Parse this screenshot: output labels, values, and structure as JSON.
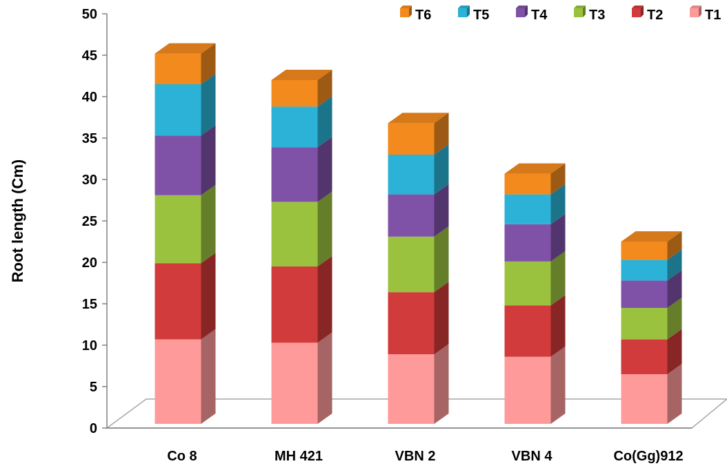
{
  "chart_data": {
    "type": "bar",
    "stacked": true,
    "three_d": true,
    "title": "",
    "xlabel": "",
    "ylabel": "Root length (Cm)",
    "ylim": [
      0,
      50
    ],
    "yticks": [
      0,
      5,
      10,
      15,
      20,
      25,
      30,
      35,
      40,
      45,
      50
    ],
    "grid": false,
    "legend_position": "top-right",
    "categories": [
      "Co 8",
      "MH 421",
      "VBN 2",
      "VBN 4",
      "Co(Gg)912"
    ],
    "series": [
      {
        "name": "T1",
        "color": "#ff9a9a",
        "values": [
          10.2,
          9.8,
          8.4,
          8.1,
          6.0
        ]
      },
      {
        "name": "T2",
        "color": "#d13b3b",
        "values": [
          9.2,
          9.2,
          7.5,
          6.2,
          4.2
        ]
      },
      {
        "name": "T3",
        "color": "#9bc23f",
        "values": [
          8.2,
          7.8,
          6.7,
          5.3,
          3.8
        ]
      },
      {
        "name": "T4",
        "color": "#7f52a8",
        "values": [
          7.2,
          6.6,
          5.1,
          4.5,
          3.3
        ]
      },
      {
        "name": "T5",
        "color": "#2bb2d6",
        "values": [
          6.2,
          4.9,
          4.8,
          3.6,
          2.5
        ]
      },
      {
        "name": "T6",
        "color": "#f28a1e",
        "values": [
          3.7,
          3.2,
          3.8,
          2.5,
          2.2
        ]
      }
    ]
  }
}
